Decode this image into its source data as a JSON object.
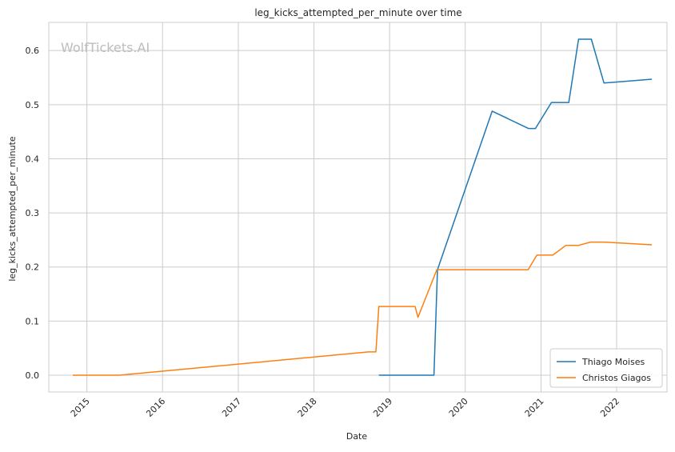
{
  "chart_data": {
    "type": "line",
    "title": "leg_kicks_attempted_per_minute over time",
    "xlabel": "Date",
    "ylabel": "leg_kicks_attempted_per_minute",
    "watermark": "WolfTickets.AI",
    "x_ticks": [
      "2015",
      "2016",
      "2017",
      "2018",
      "2019",
      "2020",
      "2021",
      "2022"
    ],
    "y_ticks": [
      "0.0",
      "0.1",
      "0.2",
      "0.3",
      "0.4",
      "0.5",
      "0.6"
    ],
    "xlim": [
      "2014-07-01",
      "2022-09-01"
    ],
    "ylim": [
      -0.031,
      0.652
    ],
    "grid": true,
    "legend_position": "bottom-right",
    "series": [
      {
        "name": "Thiago Moises",
        "color": "#1f77b4",
        "points": [
          [
            "2018-11-10",
            0.0
          ],
          [
            "2019-08-03",
            0.0
          ],
          [
            "2019-08-20",
            0.195
          ],
          [
            "2020-05-10",
            0.488
          ],
          [
            "2020-11-01",
            0.456
          ],
          [
            "2020-12-05",
            0.456
          ],
          [
            "2021-02-20",
            0.504
          ],
          [
            "2021-05-15",
            0.504
          ],
          [
            "2021-07-01",
            0.621
          ],
          [
            "2021-09-01",
            0.621
          ],
          [
            "2021-11-01",
            0.54
          ],
          [
            "2022-06-20",
            0.547
          ]
        ]
      },
      {
        "name": "Christos Giagos",
        "color": "#ff7f0e",
        "points": [
          [
            "2014-10-25",
            0.0
          ],
          [
            "2015-06-06",
            0.0
          ],
          [
            "2018-09-20",
            0.043
          ],
          [
            "2018-10-27",
            0.043
          ],
          [
            "2018-11-10",
            0.127
          ],
          [
            "2019-05-04",
            0.127
          ],
          [
            "2019-05-18",
            0.107
          ],
          [
            "2019-08-17",
            0.195
          ],
          [
            "2020-10-31",
            0.195
          ],
          [
            "2020-12-12",
            0.222
          ],
          [
            "2021-02-27",
            0.222
          ],
          [
            "2021-05-01",
            0.24
          ],
          [
            "2021-07-01",
            0.24
          ],
          [
            "2021-08-28",
            0.246
          ],
          [
            "2021-11-01",
            0.246
          ],
          [
            "2022-06-20",
            0.241
          ]
        ]
      }
    ]
  }
}
